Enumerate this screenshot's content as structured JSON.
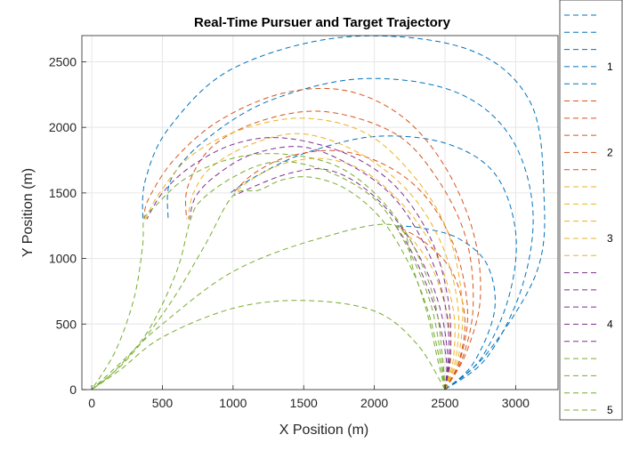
{
  "chart_data": {
    "type": "line",
    "title": "Real-Time Pursuer and Target Trajectory",
    "xlabel": "X Position (m)",
    "ylabel": "Y Position (m)",
    "xlim": [
      -70,
      3300
    ],
    "ylim": [
      0,
      2700
    ],
    "x_ticks": [
      0,
      500,
      1000,
      1500,
      2000,
      2500,
      3000
    ],
    "y_ticks": [
      0,
      500,
      1000,
      1500,
      2000,
      2500
    ],
    "grid": true,
    "legend": {
      "placement": "right",
      "entries": [
        "",
        "",
        "",
        "1",
        "",
        "",
        "",
        "",
        "2",
        "",
        "",
        "",
        "",
        "3",
        "",
        "",
        "",
        "",
        "4",
        "",
        "",
        "",
        "",
        "5"
      ]
    },
    "colors": {
      "blue": "#0072BD",
      "orange": "#D95319",
      "yellow": "#EDB120",
      "purple": "#7E2F8E",
      "green": "#77AC30"
    },
    "series": [
      {
        "color": "blue",
        "points": [
          [
            2500,
            0
          ],
          [
            2800,
            280
          ],
          [
            3150,
            900
          ],
          [
            3200,
            1500
          ],
          [
            3100,
            2200
          ],
          [
            2650,
            2600
          ],
          [
            1800,
            2690
          ],
          [
            1000,
            2450
          ],
          [
            550,
            2000
          ],
          [
            380,
            1600
          ],
          [
            360,
            1300
          ]
        ]
      },
      {
        "color": "blue",
        "points": [
          [
            2500,
            0
          ],
          [
            2800,
            250
          ],
          [
            3050,
            800
          ],
          [
            3120,
            1400
          ],
          [
            2950,
            1950
          ],
          [
            2550,
            2280
          ],
          [
            1900,
            2370
          ],
          [
            1250,
            2200
          ],
          [
            800,
            1900
          ],
          [
            560,
            1600
          ],
          [
            540,
            1300
          ]
        ]
      },
      {
        "color": "blue",
        "points": [
          [
            2500,
            0
          ],
          [
            2750,
            230
          ],
          [
            2950,
            700
          ],
          [
            3000,
            1200
          ],
          [
            2850,
            1650
          ],
          [
            2500,
            1880
          ],
          [
            2000,
            1930
          ],
          [
            1500,
            1800
          ],
          [
            1150,
            1620
          ],
          [
            980,
            1500
          ]
        ]
      },
      {
        "color": "blue",
        "points": [
          [
            2500,
            0
          ],
          [
            2700,
            200
          ],
          [
            2850,
            600
          ],
          [
            2800,
            950
          ],
          [
            2600,
            1150
          ],
          [
            2350,
            1230
          ],
          [
            2150,
            1250
          ]
        ]
      },
      {
        "color": "orange",
        "points": [
          [
            2500,
            0
          ],
          [
            2650,
            280
          ],
          [
            2750,
            700
          ],
          [
            2700,
            1200
          ],
          [
            2500,
            1700
          ],
          [
            2200,
            2080
          ],
          [
            1800,
            2280
          ],
          [
            1350,
            2260
          ],
          [
            900,
            2050
          ],
          [
            580,
            1750
          ],
          [
            400,
            1450
          ],
          [
            370,
            1300
          ]
        ]
      },
      {
        "color": "orange",
        "points": [
          [
            2500,
            0
          ],
          [
            2630,
            260
          ],
          [
            2700,
            650
          ],
          [
            2650,
            1150
          ],
          [
            2450,
            1600
          ],
          [
            2150,
            1950
          ],
          [
            1650,
            2120
          ],
          [
            1200,
            2050
          ],
          [
            850,
            1850
          ],
          [
            680,
            1550
          ],
          [
            670,
            1300
          ]
        ]
      },
      {
        "color": "orange",
        "points": [
          [
            2500,
            0
          ],
          [
            2610,
            240
          ],
          [
            2660,
            600
          ],
          [
            2580,
            1050
          ],
          [
            2380,
            1450
          ],
          [
            2100,
            1700
          ],
          [
            1750,
            1820
          ],
          [
            1400,
            1780
          ],
          [
            1150,
            1650
          ],
          [
            1000,
            1500
          ]
        ]
      },
      {
        "color": "orange",
        "points": [
          [
            2500,
            0
          ],
          [
            2600,
            220
          ],
          [
            2640,
            550
          ],
          [
            2550,
            900
          ],
          [
            2350,
            1130
          ],
          [
            2150,
            1250
          ]
        ]
      },
      {
        "color": "yellow",
        "points": [
          [
            2500,
            0
          ],
          [
            2600,
            280
          ],
          [
            2620,
            700
          ],
          [
            2520,
            1200
          ],
          [
            2300,
            1600
          ],
          [
            1950,
            1950
          ],
          [
            1500,
            2070
          ],
          [
            1050,
            1980
          ],
          [
            700,
            1780
          ],
          [
            480,
            1500
          ],
          [
            380,
            1300
          ]
        ]
      },
      {
        "color": "yellow",
        "points": [
          [
            2500,
            0
          ],
          [
            2580,
            260
          ],
          [
            2590,
            650
          ],
          [
            2480,
            1100
          ],
          [
            2250,
            1500
          ],
          [
            1900,
            1800
          ],
          [
            1500,
            1950
          ],
          [
            1150,
            1880
          ],
          [
            850,
            1700
          ],
          [
            720,
            1500
          ],
          [
            680,
            1300
          ]
        ]
      },
      {
        "color": "yellow",
        "points": [
          [
            2500,
            0
          ],
          [
            2560,
            240
          ],
          [
            2560,
            600
          ],
          [
            2450,
            1000
          ],
          [
            2250,
            1350
          ],
          [
            1950,
            1650
          ],
          [
            1650,
            1760
          ],
          [
            1350,
            1720
          ],
          [
            1100,
            1580
          ],
          [
            1000,
            1480
          ]
        ]
      },
      {
        "color": "yellow",
        "points": [
          [
            2500,
            0
          ],
          [
            2540,
            220
          ],
          [
            2520,
            550
          ],
          [
            2420,
            900
          ],
          [
            2280,
            1130
          ],
          [
            2150,
            1250
          ]
        ]
      },
      {
        "color": "purple",
        "points": [
          [
            2500,
            0
          ],
          [
            2540,
            280
          ],
          [
            2520,
            700
          ],
          [
            2400,
            1150
          ],
          [
            2150,
            1550
          ],
          [
            1800,
            1800
          ],
          [
            1350,
            1920
          ],
          [
            1000,
            1870
          ],
          [
            700,
            1700
          ],
          [
            500,
            1500
          ],
          [
            390,
            1300
          ]
        ]
      },
      {
        "color": "purple",
        "points": [
          [
            2500,
            0
          ],
          [
            2530,
            260
          ],
          [
            2500,
            650
          ],
          [
            2380,
            1050
          ],
          [
            2150,
            1450
          ],
          [
            1850,
            1700
          ],
          [
            1500,
            1850
          ],
          [
            1150,
            1800
          ],
          [
            900,
            1650
          ],
          [
            740,
            1480
          ],
          [
            690,
            1300
          ]
        ]
      },
      {
        "color": "purple",
        "points": [
          [
            2500,
            0
          ],
          [
            2520,
            240
          ],
          [
            2470,
            600
          ],
          [
            2350,
            950
          ],
          [
            2150,
            1300
          ],
          [
            1900,
            1560
          ],
          [
            1650,
            1680
          ],
          [
            1400,
            1650
          ],
          [
            1150,
            1550
          ],
          [
            1010,
            1480
          ]
        ]
      },
      {
        "color": "purple",
        "points": [
          [
            2500,
            0
          ],
          [
            2510,
            220
          ],
          [
            2450,
            550
          ],
          [
            2350,
            850
          ],
          [
            2250,
            1080
          ],
          [
            2150,
            1250
          ]
        ]
      },
      {
        "color": "green",
        "points": [
          [
            2500,
            0
          ],
          [
            2480,
            280
          ],
          [
            2420,
            700
          ],
          [
            2250,
            1150
          ],
          [
            2000,
            1500
          ],
          [
            1700,
            1720
          ],
          [
            1300,
            1800
          ],
          [
            950,
            1750
          ],
          [
            650,
            1600
          ],
          [
            450,
            1400
          ],
          [
            370,
            1300
          ],
          [
            360,
            1100
          ],
          [
            300,
            700
          ],
          [
            170,
            300
          ],
          [
            0,
            0
          ]
        ]
      },
      {
        "color": "green",
        "points": [
          [
            2500,
            0
          ],
          [
            2470,
            260
          ],
          [
            2400,
            650
          ],
          [
            2250,
            1050
          ],
          [
            2050,
            1400
          ],
          [
            1800,
            1600
          ],
          [
            1500,
            1720
          ],
          [
            1250,
            1730
          ],
          [
            1000,
            1620
          ],
          [
            780,
            1450
          ],
          [
            700,
            1300
          ],
          [
            600,
            900
          ],
          [
            400,
            450
          ],
          [
            170,
            150
          ],
          [
            0,
            0
          ]
        ]
      },
      {
        "color": "green",
        "points": [
          [
            2500,
            0
          ],
          [
            2460,
            240
          ],
          [
            2380,
            600
          ],
          [
            2250,
            950
          ],
          [
            2050,
            1300
          ],
          [
            1800,
            1530
          ],
          [
            1550,
            1620
          ],
          [
            1350,
            1600
          ],
          [
            1180,
            1520
          ],
          [
            1000,
            1480
          ],
          [
            800,
            1100
          ],
          [
            550,
            650
          ],
          [
            250,
            230
          ],
          [
            0,
            0
          ]
        ]
      },
      {
        "color": "green",
        "points": [
          [
            2500,
            0
          ],
          [
            2450,
            220
          ],
          [
            2380,
            560
          ],
          [
            2280,
            900
          ],
          [
            2150,
            1250
          ],
          [
            1600,
            1150
          ],
          [
            1000,
            900
          ],
          [
            500,
            500
          ],
          [
            200,
            200
          ],
          [
            0,
            0
          ]
        ]
      },
      {
        "color": "green",
        "points": [
          [
            2500,
            0
          ],
          [
            2300,
            350
          ],
          [
            2000,
            600
          ],
          [
            1500,
            680
          ],
          [
            1000,
            620
          ],
          [
            500,
            400
          ],
          [
            200,
            150
          ],
          [
            0,
            0
          ]
        ]
      }
    ]
  }
}
